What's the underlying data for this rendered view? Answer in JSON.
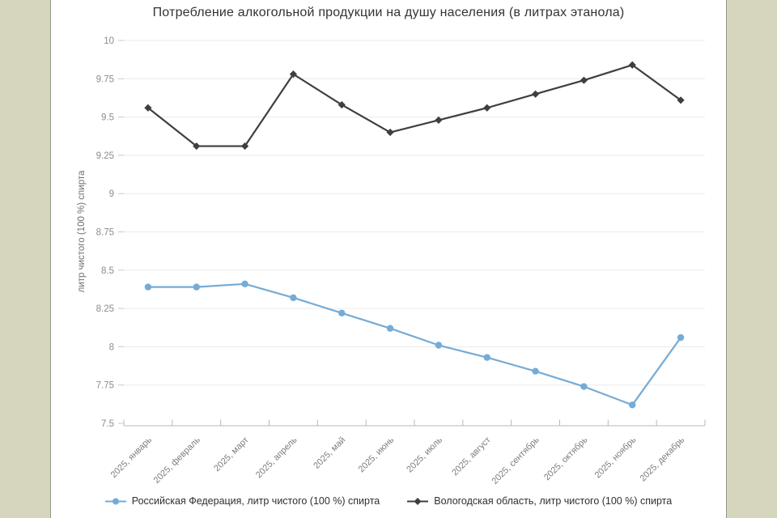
{
  "title": "Потребление алкогольной продукции на душу населения (в литрах этанола)",
  "chart_data": {
    "type": "line",
    "title": "Потребление алкогольной продукции на душу населения (в литрах этанола)",
    "xlabel": "",
    "ylabel": "литр чистого (100 %) спирта",
    "categories": [
      "2025, январь",
      "2025, февраль",
      "2025, март",
      "2025, апрель",
      "2025, май",
      "2025, июнь",
      "2025, июль",
      "2025, август",
      "2025, сентябрь",
      "2025, октябрь",
      "2025, ноябрь",
      "2025, декабрь"
    ],
    "series": [
      {
        "name": "Российская Федерация, литр чистого (100 %) спирта",
        "color": "#76abd5",
        "marker": "circle",
        "values": [
          8.39,
          8.39,
          8.41,
          8.32,
          8.22,
          8.12,
          8.01,
          7.93,
          7.84,
          7.74,
          7.62,
          8.06
        ]
      },
      {
        "name": "Вологодская область, литр чистого (100 %) спирта",
        "color": "#3f3f3f",
        "marker": "diamond",
        "values": [
          9.56,
          9.31,
          9.31,
          9.78,
          9.58,
          9.4,
          9.48,
          9.56,
          9.65,
          9.74,
          9.84,
          9.61
        ]
      }
    ],
    "ylim": [
      7.5,
      10
    ],
    "yticks": [
      7.5,
      7.75,
      8,
      8.25,
      8.5,
      8.75,
      9,
      9.25,
      9.5,
      9.75,
      10
    ],
    "grid": true,
    "legend_position": "bottom"
  },
  "colors": {
    "page_background": "#d6d6bf",
    "panel_background": "#ffffff",
    "grid_line": "#eaeaea",
    "axis_line": "#b8b8b8",
    "y_tick_label": "#8c8c8c",
    "x_tick_label": "#7d7d7d",
    "title_text": "#333333"
  }
}
